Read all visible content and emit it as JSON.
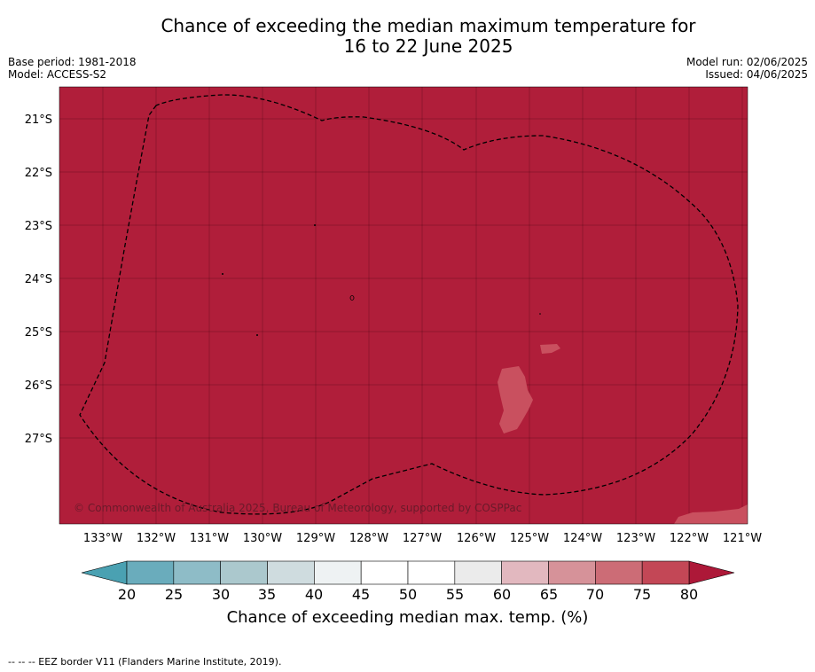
{
  "title_line1": "Chance of exceeding the median maximum temperature for",
  "title_line2": "16 to 22 June 2025",
  "meta": {
    "base_period": "Base period: 1981-2018",
    "model": "Model: ACCESS-S2",
    "model_run": "Model run: 02/06/2025",
    "issued": "Issued: 04/06/2025"
  },
  "map": {
    "background_color": "#b01e3a",
    "patch_color": "#c9505f",
    "copyright": "© Commonwealth of Australia 2025, Bureau of Meteorology, supported by COSPPac",
    "lat_labels": [
      "21°S",
      "22°S",
      "23°S",
      "24°S",
      "25°S",
      "26°S",
      "27°S"
    ],
    "lon_labels": [
      "133°W",
      "132°W",
      "131°W",
      "130°W",
      "129°W",
      "128°W",
      "127°W",
      "126°W",
      "125°W",
      "124°W",
      "123°W",
      "122°W",
      "121°W"
    ]
  },
  "colorbar": {
    "ticks": [
      "20",
      "25",
      "30",
      "35",
      "40",
      "45",
      "50",
      "55",
      "60",
      "65",
      "70",
      "75",
      "80"
    ],
    "colors": [
      "#6aacbc",
      "#8ebcc7",
      "#abc8cd",
      "#cfdcdf",
      "#eef2f3",
      "#ffffff",
      "#ffffff",
      "#ebebeb",
      "#e2b8bf",
      "#d69299",
      "#cc6c76",
      "#c34756"
    ],
    "under_color": "#4aa1b2",
    "over_color": "#ad1838",
    "title": "Chance of exceeding median max. temp. (%)"
  },
  "footnote": "--  --  -- EEZ border V11 (Flanders Marine Institute, 2019)."
}
